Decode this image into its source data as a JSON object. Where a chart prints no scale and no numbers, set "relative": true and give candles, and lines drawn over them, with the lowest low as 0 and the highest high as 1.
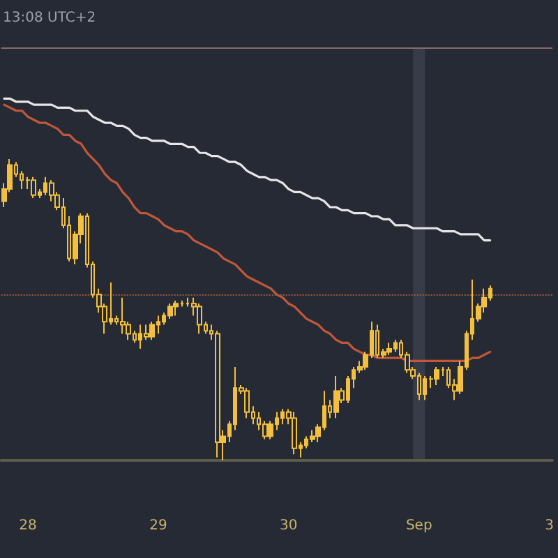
{
  "chart_data": {
    "type": "candlestick",
    "relative": true,
    "annotations": [
      "13:08 UTC+2"
    ],
    "categories": [
      null,
      null,
      null,
      null,
      "28",
      null,
      null,
      null,
      null,
      null,
      null,
      null,
      null,
      null,
      null,
      null,
      null,
      null,
      null,
      null,
      null,
      null,
      null,
      null,
      null,
      null,
      "29",
      null,
      null,
      null,
      null,
      null,
      null,
      null,
      null,
      null,
      null,
      null,
      null,
      null,
      null,
      null,
      null,
      null,
      null,
      null,
      null,
      null,
      "30",
      null,
      null,
      null,
      null,
      null,
      null,
      null,
      null,
      null,
      null,
      null,
      null,
      null,
      null,
      null,
      null,
      null,
      null,
      null,
      null,
      null,
      "Sep",
      null,
      null,
      null,
      null,
      null,
      null,
      null,
      null,
      null,
      null,
      null,
      null,
      null,
      null,
      null,
      null,
      null,
      null,
      null,
      null,
      null,
      "3"
    ],
    "color": "#f2c03e",
    "ohlc": [
      [
        0.86,
        0.92,
        0.84,
        0.9
      ],
      [
        0.9,
        1,
        0.89,
        0.98
      ],
      [
        0.98,
        0.99,
        0.94,
        0.95
      ],
      [
        0.95,
        0.96,
        0.9,
        0.93
      ],
      [
        0.93,
        0.94,
        0.9,
        0.93
      ],
      [
        0.93,
        0.94,
        0.87,
        0.88
      ],
      [
        0.88,
        0.9,
        0.87,
        0.89
      ],
      [
        0.89,
        0.94,
        0.88,
        0.92
      ],
      [
        0.92,
        0.93,
        0.86,
        0.88
      ],
      [
        0.88,
        0.89,
        0.83,
        0.84
      ],
      [
        0.84,
        0.87,
        0.77,
        0.78
      ],
      [
        0.78,
        0.81,
        0.66,
        0.67
      ],
      [
        0.67,
        0.76,
        0.65,
        0.75
      ],
      [
        0.75,
        0.82,
        0.72,
        0.81
      ],
      [
        0.81,
        0.82,
        0.64,
        0.65
      ],
      [
        0.65,
        0.66,
        0.54,
        0.55
      ],
      [
        0.55,
        0.57,
        0.49,
        0.51
      ],
      [
        0.51,
        0.52,
        0.42,
        0.46
      ],
      [
        0.46,
        0.59,
        0.45,
        0.47
      ],
      [
        0.47,
        0.48,
        0.45,
        0.46
      ],
      [
        0.46,
        0.54,
        0.42,
        0.45
      ],
      [
        0.45,
        0.46,
        0.4,
        0.42
      ],
      [
        0.42,
        0.43,
        0.39,
        0.4
      ],
      [
        0.4,
        0.45,
        0.37,
        0.42
      ],
      [
        0.42,
        0.45,
        0.4,
        0.41
      ],
      [
        0.41,
        0.46,
        0.4,
        0.45
      ],
      [
        0.45,
        0.48,
        0.42,
        0.46
      ],
      [
        0.46,
        0.49,
        0.45,
        0.48
      ],
      [
        0.48,
        0.52,
        0.47,
        0.51
      ],
      [
        0.51,
        0.53,
        0.48,
        0.52
      ],
      [
        0.52,
        0.53,
        0.51,
        0.52
      ],
      [
        0.52,
        0.54,
        0.51,
        0.52
      ],
      [
        0.52,
        0.54,
        0.48,
        0.51
      ],
      [
        0.51,
        0.52,
        0.42,
        0.45
      ],
      [
        0.45,
        0.46,
        0.42,
        0.43
      ],
      [
        0.43,
        0.45,
        0.4,
        0.42
      ],
      [
        0.42,
        0.43,
        0.01,
        0.06
      ],
      [
        0.06,
        0.1,
        0,
        0.08
      ],
      [
        0.08,
        0.13,
        0.06,
        0.12
      ],
      [
        0.12,
        0.31,
        0.1,
        0.24
      ],
      [
        0.24,
        0.25,
        0.22,
        0.23
      ],
      [
        0.23,
        0.24,
        0.14,
        0.16
      ],
      [
        0.16,
        0.18,
        0.12,
        0.14
      ],
      [
        0.14,
        0.16,
        0.1,
        0.12
      ],
      [
        0.12,
        0.13,
        0.07,
        0.08
      ],
      [
        0.08,
        0.13,
        0.07,
        0.12
      ],
      [
        0.12,
        0.16,
        0.1,
        0.14
      ],
      [
        0.14,
        0.17,
        0.12,
        0.16
      ],
      [
        0.16,
        0.17,
        0.12,
        0.14
      ],
      [
        0.14,
        0.16,
        0.02,
        0.04
      ],
      [
        0.04,
        0.06,
        0.01,
        0.05
      ],
      [
        0.05,
        0.08,
        0.04,
        0.07
      ],
      [
        0.07,
        0.1,
        0.06,
        0.08
      ],
      [
        0.08,
        0.12,
        0.06,
        0.11
      ],
      [
        0.11,
        0.23,
        0.1,
        0.18
      ],
      [
        0.18,
        0.2,
        0.14,
        0.16
      ],
      [
        0.16,
        0.28,
        0.14,
        0.23
      ],
      [
        0.23,
        0.24,
        0.19,
        0.2
      ],
      [
        0.2,
        0.28,
        0.19,
        0.27
      ],
      [
        0.27,
        0.31,
        0.24,
        0.3
      ],
      [
        0.3,
        0.33,
        0.29,
        0.31
      ],
      [
        0.31,
        0.36,
        0.3,
        0.35
      ],
      [
        0.35,
        0.46,
        0.34,
        0.43
      ],
      [
        0.43,
        0.45,
        0.34,
        0.35
      ],
      [
        0.35,
        0.37,
        0.34,
        0.36
      ],
      [
        0.36,
        0.39,
        0.35,
        0.37
      ],
      [
        0.37,
        0.4,
        0.36,
        0.39
      ],
      [
        0.39,
        0.4,
        0.34,
        0.35
      ],
      [
        0.35,
        0.36,
        0.29,
        0.3
      ],
      [
        0.3,
        0.31,
        0.27,
        0.28
      ],
      [
        0.28,
        0.29,
        0.2,
        0.22
      ],
      [
        0.22,
        0.28,
        0.2,
        0.27
      ],
      [
        0.27,
        0.28,
        0.24,
        0.27
      ],
      [
        0.27,
        0.31,
        0.25,
        0.3
      ],
      [
        0.3,
        0.31,
        0.28,
        0.3
      ],
      [
        0.3,
        0.31,
        0.24,
        0.25
      ],
      [
        0.25,
        0.27,
        0.2,
        0.23
      ],
      [
        0.23,
        0.33,
        0.22,
        0.31
      ],
      [
        0.31,
        0.43,
        0.3,
        0.42
      ],
      [
        0.42,
        0.6,
        0.4,
        0.47
      ],
      [
        0.47,
        0.52,
        0.46,
        0.51
      ],
      [
        0.51,
        0.57,
        0.49,
        0.54
      ],
      [
        0.54,
        0.58,
        0.53,
        0.57
      ],
      null,
      null,
      null,
      null,
      null,
      null,
      null,
      null,
      null,
      null
    ],
    "series": [
      {
        "type": "line",
        "color": "#e6e6e6",
        "values": [
          1.2,
          1.2,
          1.19,
          1.19,
          1.19,
          1.18,
          1.18,
          1.18,
          1.18,
          1.17,
          1.17,
          1.17,
          1.16,
          1.16,
          1.16,
          1.14,
          1.13,
          1.12,
          1.12,
          1.11,
          1.11,
          1.1,
          1.08,
          1.07,
          1.07,
          1.06,
          1.06,
          1.06,
          1.05,
          1.05,
          1.05,
          1.04,
          1.04,
          1.02,
          1.02,
          1.01,
          1.01,
          1,
          0.99,
          0.99,
          0.98,
          0.96,
          0.95,
          0.94,
          0.94,
          0.93,
          0.93,
          0.92,
          0.9,
          0.89,
          0.89,
          0.88,
          0.87,
          0.87,
          0.86,
          0.84,
          0.84,
          0.83,
          0.83,
          0.82,
          0.82,
          0.82,
          0.81,
          0.81,
          0.8,
          0.8,
          0.78,
          0.78,
          0.78,
          0.77,
          0.77,
          0.77,
          0.77,
          0.77,
          0.76,
          0.76,
          0.76,
          0.75,
          0.75,
          0.75,
          0.75,
          0.73,
          0.73,
          null,
          null,
          null,
          null,
          null,
          null,
          null,
          null,
          null,
          null
        ]
      },
      {
        "type": "line",
        "color": "#c2573a",
        "values": [
          1.18,
          1.17,
          1.16,
          1.16,
          1.14,
          1.13,
          1.12,
          1.12,
          1.11,
          1.1,
          1.08,
          1.08,
          1.06,
          1.05,
          1.02,
          1,
          0.98,
          0.95,
          0.93,
          0.92,
          0.89,
          0.87,
          0.84,
          0.82,
          0.82,
          0.81,
          0.8,
          0.78,
          0.77,
          0.76,
          0.76,
          0.75,
          0.73,
          0.72,
          0.71,
          0.7,
          0.69,
          0.67,
          0.66,
          0.65,
          0.63,
          0.61,
          0.6,
          0.59,
          0.58,
          0.57,
          0.55,
          0.54,
          0.52,
          0.51,
          0.49,
          0.47,
          0.46,
          0.45,
          0.43,
          0.42,
          0.4,
          0.39,
          0.39,
          0.37,
          0.36,
          0.35,
          0.35,
          0.34,
          0.34,
          0.34,
          0.34,
          0.34,
          0.33,
          0.33,
          0.33,
          0.33,
          0.33,
          0.33,
          0.33,
          0.33,
          0.33,
          0.33,
          0.33,
          0.34,
          0.34,
          0.35,
          0.36,
          null,
          null,
          null,
          null,
          null,
          null,
          null,
          null,
          null,
          null
        ]
      }
    ],
    "ref_lines": [
      {
        "axis": "y",
        "value": 0.55,
        "color": "#9a5a3a",
        "line_style": "dotted"
      },
      {
        "axis": "y",
        "value": 1.37,
        "color": "#8a6870",
        "line_style": "solid"
      }
    ],
    "bands": [
      {
        "axis": "x",
        "from": "Sep",
        "to": "Sep",
        "color": "#373c48"
      }
    ]
  }
}
